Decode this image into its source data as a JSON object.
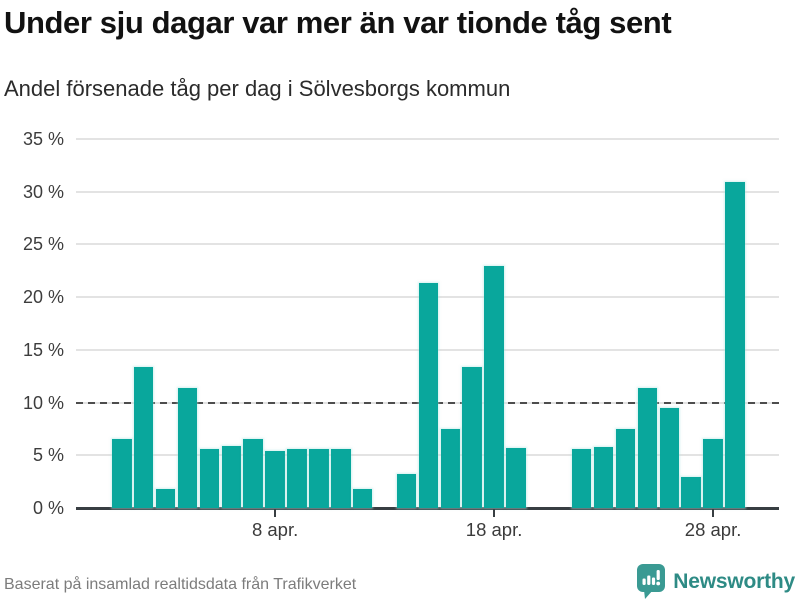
{
  "header": {
    "title": "Under sju dagar var mer än var tionde tåg sent",
    "subtitle": "Andel försenade tåg per dag i Sölvesborgs kommun"
  },
  "footer": {
    "source": "Baserat på insamlad realtidsdata från Trafikverket",
    "brand_name": "Newsworthy",
    "brand_icon": "newsworthy-speech-bubble-bar-chart-icon"
  },
  "colors": {
    "bar": "#09a79c",
    "grid": "#e3e3e3",
    "axis": "#383e42",
    "reference_dash": "#4d4d4d",
    "brand_teal": "#3a9a93",
    "brand_text_teal": "#2e8b85",
    "footer_text": "#7c7c7c"
  },
  "chart_data": {
    "type": "bar",
    "title": "Under sju dagar var mer än var tionde tåg sent",
    "subtitle": "Andel försenade tåg per dag i Sölvesborgs kommun",
    "x_unit": "day of April",
    "ylim": [
      0,
      35
    ],
    "grid": true,
    "reference_line_value": 10,
    "missing_days": [
      13,
      20,
      21
    ],
    "bars": [
      {
        "day": 1,
        "value": 6.5
      },
      {
        "day": 2,
        "value": 13.4
      },
      {
        "day": 3,
        "value": 1.8
      },
      {
        "day": 4,
        "value": 11.4
      },
      {
        "day": 5,
        "value": 5.6
      },
      {
        "day": 6,
        "value": 5.9
      },
      {
        "day": 7,
        "value": 6.5
      },
      {
        "day": 8,
        "value": 5.4
      },
      {
        "day": 9,
        "value": 5.6
      },
      {
        "day": 10,
        "value": 5.6
      },
      {
        "day": 11,
        "value": 5.6
      },
      {
        "day": 12,
        "value": 1.8
      },
      {
        "day": 14,
        "value": 3.2
      },
      {
        "day": 15,
        "value": 21.3
      },
      {
        "day": 16,
        "value": 7.5
      },
      {
        "day": 17,
        "value": 13.4
      },
      {
        "day": 18,
        "value": 23.0
      },
      {
        "day": 19,
        "value": 5.7
      },
      {
        "day": 22,
        "value": 5.6
      },
      {
        "day": 23,
        "value": 5.8
      },
      {
        "day": 24,
        "value": 7.5
      },
      {
        "day": 25,
        "value": 11.4
      },
      {
        "day": 26,
        "value": 9.5
      },
      {
        "day": 27,
        "value": 2.9
      },
      {
        "day": 28,
        "value": 6.5
      },
      {
        "day": 29,
        "value": 30.9
      }
    ],
    "y_ticks": [
      {
        "value": 0,
        "label": "0 %"
      },
      {
        "value": 5,
        "label": "5 %"
      },
      {
        "value": 10,
        "label": "10 %"
      },
      {
        "value": 15,
        "label": "15 %"
      },
      {
        "value": 20,
        "label": "20 %"
      },
      {
        "value": 25,
        "label": "25 %"
      },
      {
        "value": 30,
        "label": "30 %"
      },
      {
        "value": 35,
        "label": "35 %"
      }
    ],
    "x_ticks": [
      {
        "day": 8,
        "label": "8 apr."
      },
      {
        "day": 18,
        "label": "18 apr."
      },
      {
        "day": 28,
        "label": "28 apr."
      }
    ]
  }
}
